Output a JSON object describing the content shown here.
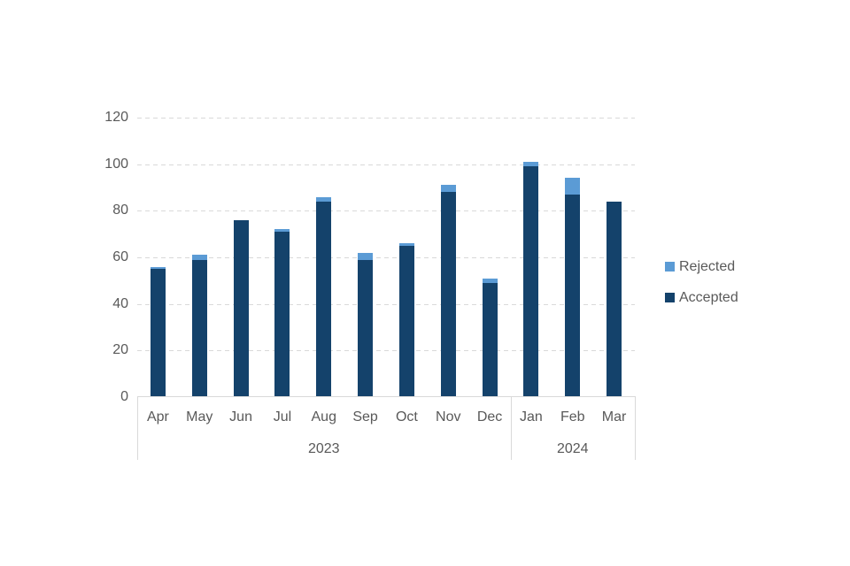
{
  "chart_data": {
    "type": "bar",
    "stacked": true,
    "title": "",
    "xlabel": "",
    "ylabel": "",
    "categories": [
      "Apr",
      "May",
      "Jun",
      "Jul",
      "Aug",
      "Sep",
      "Oct",
      "Nov",
      "Dec",
      "Jan",
      "Feb",
      "Mar"
    ],
    "category_groups": [
      {
        "label": "2023",
        "start": 0,
        "count": 9
      },
      {
        "label": "2024",
        "start": 9,
        "count": 3
      }
    ],
    "series": [
      {
        "name": "Accepted",
        "color": "#14426B",
        "values": [
          55,
          59,
          76,
          71,
          84,
          59,
          65,
          88,
          49,
          99,
          87,
          84
        ]
      },
      {
        "name": "Rejected",
        "color": "#5B9BD5",
        "values": [
          1,
          2,
          0,
          1,
          2,
          3,
          1,
          3,
          2,
          2,
          7,
          0
        ]
      }
    ],
    "ylim": [
      0,
      120
    ],
    "yticks": [
      0,
      20,
      40,
      60,
      80,
      100,
      120
    ],
    "grid": "horizontal-dashed",
    "legend_position": "right"
  },
  "legend": {
    "items": [
      {
        "label": "Rejected",
        "color": "#5B9BD5"
      },
      {
        "label": "Accepted",
        "color": "#14426B"
      }
    ]
  },
  "colors": {
    "grid": "#D9D9D9",
    "axis": "#D9D9D9",
    "text": "#595959",
    "background": "#FFFFFF"
  }
}
